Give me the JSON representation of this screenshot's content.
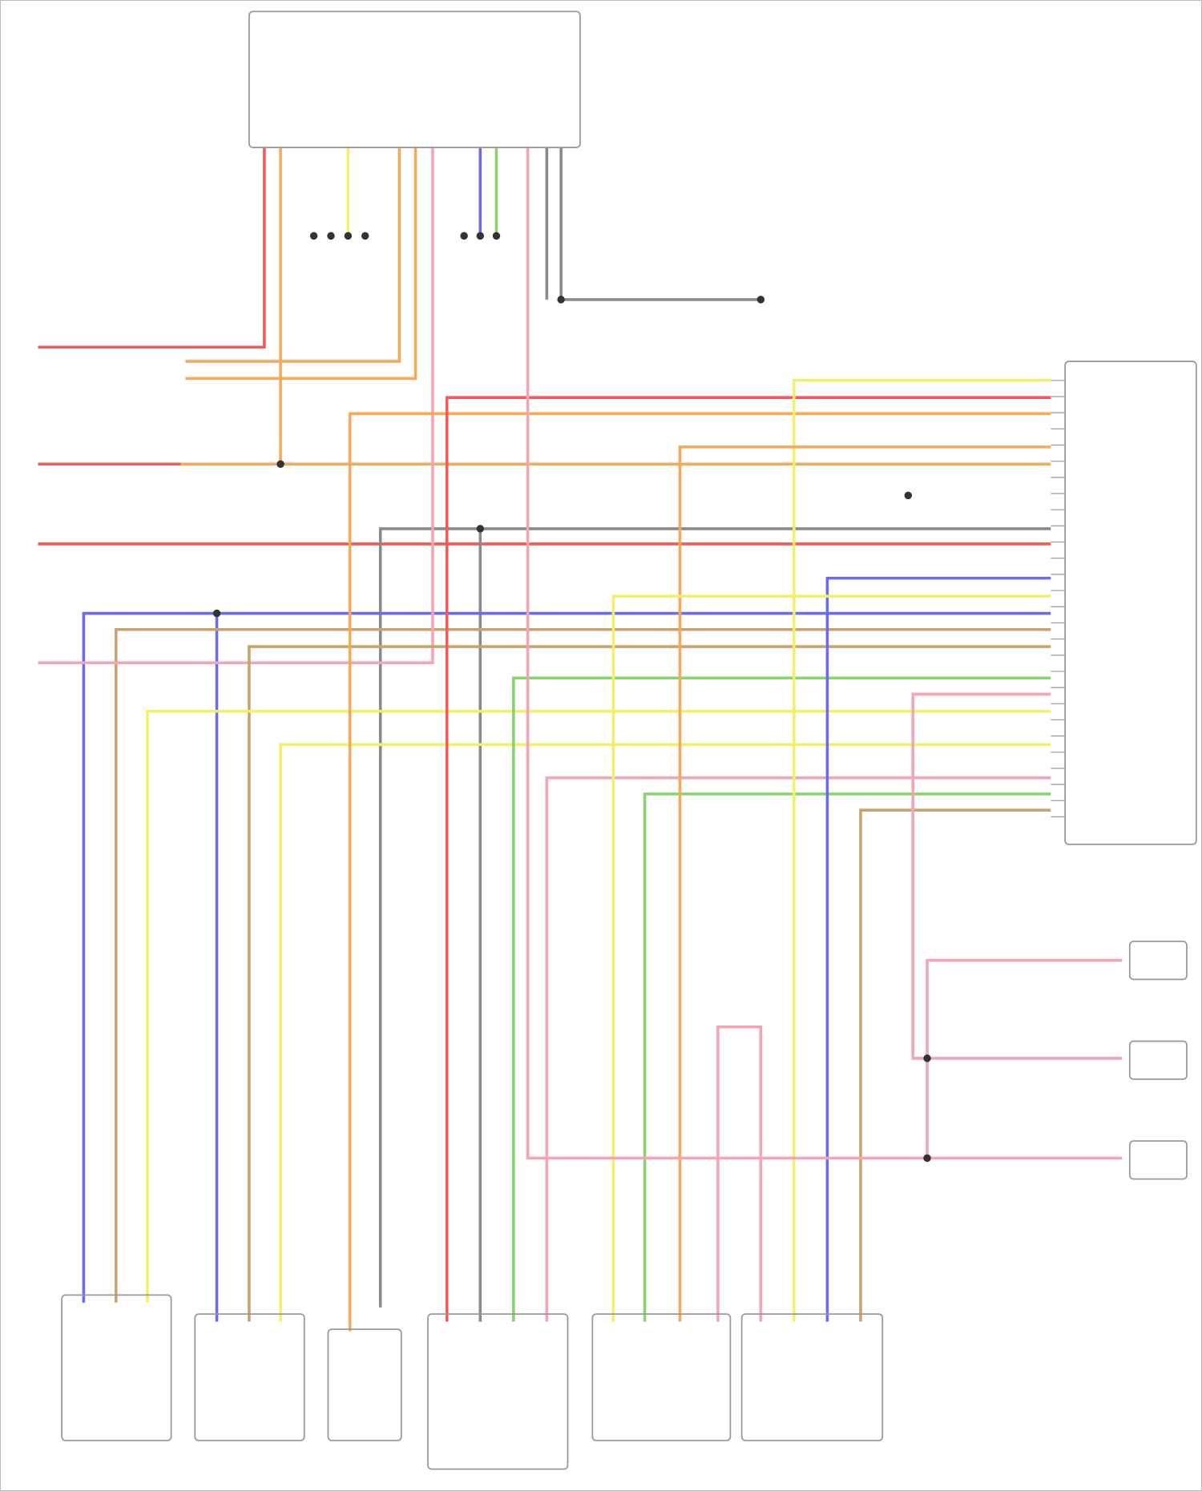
{
  "diagram": {
    "labels_legible": false,
    "wire_colors": {
      "red": "#f25a5a",
      "orange": "#f7a95a",
      "pink": "#f5a3b5",
      "gray": "#8a8a8a",
      "blue": "#6b6bf0",
      "tan": "#c9a36b",
      "yellow": "#f3ef6a",
      "green": "#86d46b"
    },
    "component_outline_color": "#9a9a9a"
  }
}
